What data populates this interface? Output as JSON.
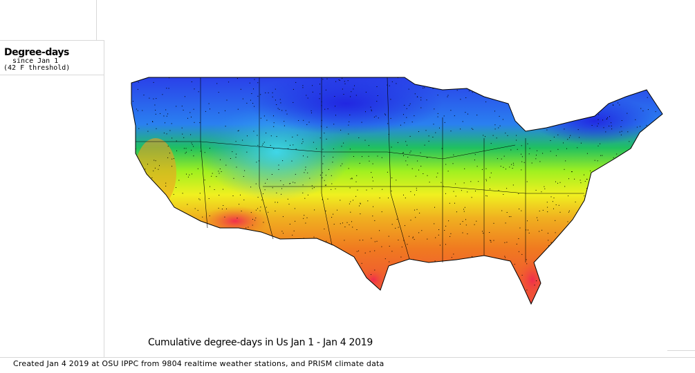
{
  "legend": {
    "title": "Degree-days",
    "subtitle": "since Jan 1",
    "threshold": "(42 F threshold)"
  },
  "map": {
    "title": "Cumulative degree-days in Us  Jan 1 - Jan 4 2019",
    "region": "contiguous United States",
    "color_scale": [
      "#2a2ae8",
      "#27a0f0",
      "#30e0f0",
      "#20d040",
      "#b0f020",
      "#f0f020",
      "#f0b020",
      "#f07020",
      "#f03040"
    ],
    "colors": {
      "border": "#000000",
      "stations": "#000000"
    }
  },
  "credit": "Created Jan 4 2019 at OSU IPPC from 9804 realtime weather stations, and PRISM climate data"
}
